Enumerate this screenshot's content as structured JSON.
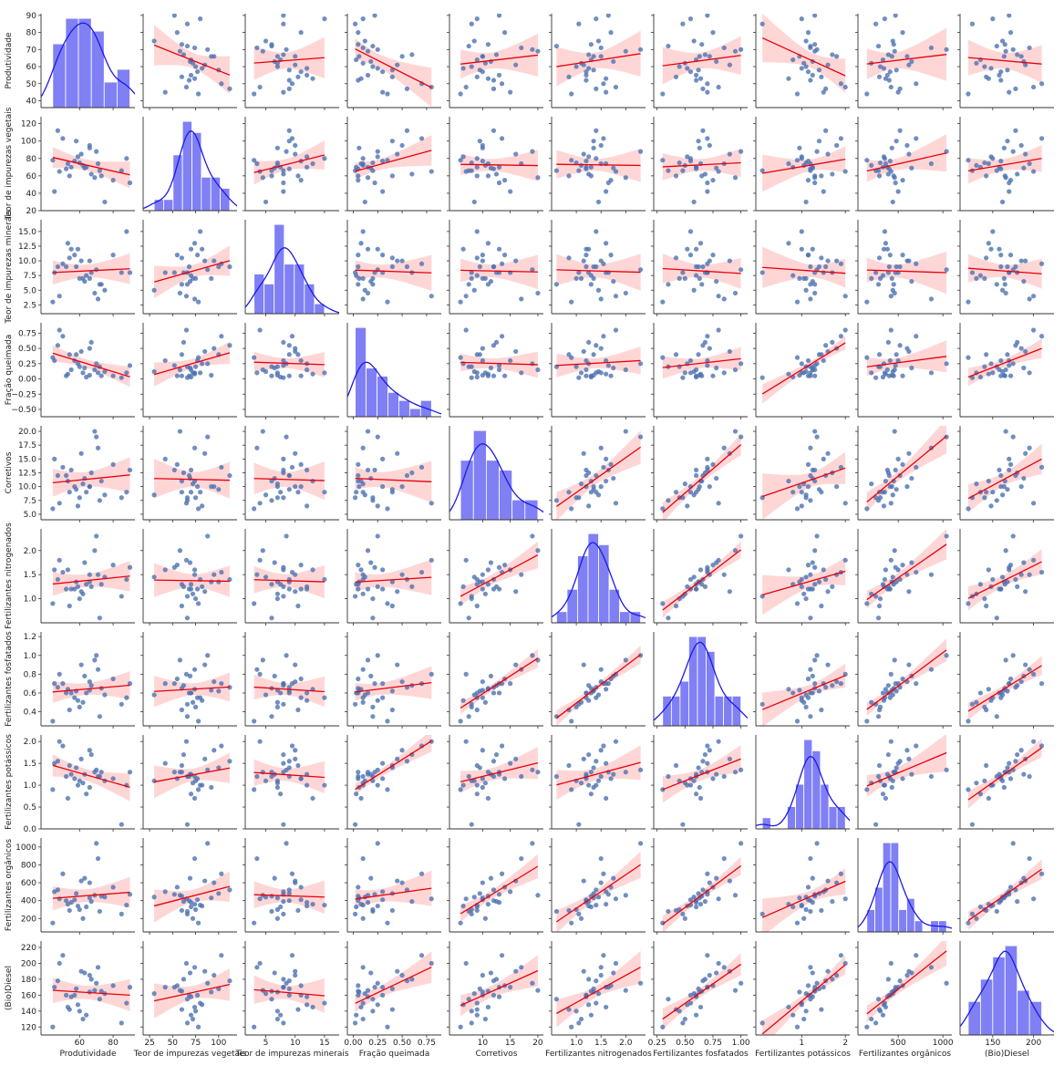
{
  "chart_data": {
    "type": "pairplot",
    "point_color": "#4c72b0",
    "line_color": "#e8000b",
    "band_color": "#ff8a8a",
    "hist_color": "#5555f0",
    "kde_color": "#1a1ae6",
    "variables": [
      {
        "name": "Produtividade",
        "xlim": [
          37,
          93
        ],
        "ylim": [
          36,
          91
        ],
        "xticks": [
          60,
          80
        ],
        "yticks": [
          40,
          50,
          60,
          70,
          80,
          90
        ],
        "bins": 6,
        "values": [
          52,
          88,
          45,
          60,
          73,
          66,
          55,
          48,
          70,
          62,
          58,
          80,
          44,
          67,
          75,
          53,
          61,
          72,
          50,
          64,
          69,
          57,
          85,
          47,
          63,
          59,
          71,
          54,
          66,
          90
        ]
      },
      {
        "name": "Teor de impurezas vegetais",
        "xlim": [
          18,
          120
        ],
        "ylim": [
          20,
          128
        ],
        "xticks": [
          25,
          50,
          75,
          100
        ],
        "yticks": [
          20,
          40,
          60,
          80,
          100,
          120
        ],
        "bins": 8,
        "values": [
          68,
          80,
          42,
          75,
          60,
          95,
          70,
          65,
          88,
          72,
          100,
          55,
          78,
          62,
          30,
          74,
          85,
          66,
          103,
          70,
          58,
          77,
          66,
          112,
          69,
          82,
          74,
          60,
          92,
          52
        ]
      },
      {
        "name": "Teor de impurezas minerais",
        "xlim": [
          1.5,
          17.5
        ],
        "ylim": [
          1,
          17
        ],
        "xticks": [
          5,
          10,
          15
        ],
        "yticks": [
          2.5,
          {
            "value": 5,
            "label": "5.0"
          },
          7.5,
          {
            "value": 10,
            "label": "10.0"
          },
          12.5,
          {
            "value": 15,
            "label": "15.0"
          }
        ],
        "bins": 7,
        "values": [
          9,
          15,
          8,
          7,
          6,
          10,
          12,
          4,
          8.5,
          7,
          9,
          11,
          3,
          8,
          5,
          13,
          10,
          6,
          9.5,
          7.5,
          4.5,
          11,
          8,
          9,
          6.5,
          12,
          3.5,
          10.5,
          7,
          8
        ]
      },
      {
        "name": "Fração queimada",
        "xlim": [
          -0.06,
          0.9
        ],
        "ylim": [
          -0.62,
          0.92
        ],
        "xticks": [
          {
            "value": 0,
            "label": "0.00"
          },
          0.25,
          {
            "value": 0.5,
            "label": "0.50"
          },
          0.75
        ],
        "yticks": [
          {
            "value": -0.5,
            "label": "−0.50"
          },
          {
            "value": -0.25,
            "label": "−0.25"
          },
          {
            "value": 0,
            "label": "0.00"
          },
          0.25,
          {
            "value": 0.5,
            "label": "0.50"
          },
          0.75
        ],
        "bins": 7,
        "values": [
          0.05,
          0.1,
          0.3,
          0.2,
          0.05,
          0.5,
          0.15,
          0.8,
          0.25,
          0.1,
          0.4,
          0.05,
          0.35,
          0.6,
          0.12,
          0.08,
          0.45,
          0.2,
          0.7,
          0.03,
          0.15,
          0.3,
          0.02,
          0.55,
          0.18,
          0.25,
          0.1,
          0.4,
          0.06,
          0.22
        ]
      },
      {
        "name": "Corretivos",
        "xlim": [
          4,
          21
        ],
        "ylim": [
          4,
          21
        ],
        "xticks": [
          10,
          15,
          20
        ],
        "yticks": [
          {
            "value": 5,
            "label": "5.0"
          },
          7.5,
          {
            "value": 10,
            "label": "10.0"
          },
          12.5,
          {
            "value": 15,
            "label": "15.0"
          },
          17.5,
          {
            "value": 20,
            "label": "20.0"
          }
        ],
        "bins": 6,
        "values": [
          12,
          9,
          15,
          8,
          11,
          10,
          13,
          7,
          19,
          10.5,
          9.5,
          14,
          6,
          12.5,
          8.5,
          11,
          16,
          7.5,
          13.5,
          9,
          20,
          10,
          8,
          12,
          11.5,
          6.5,
          17,
          9,
          10,
          13
        ]
      },
      {
        "name": "Fertilizantes nitrogenados",
        "xlim": [
          0.5,
          2.4
        ],
        "ylim": [
          0.5,
          2.45
        ],
        "xticks": [
          {
            "value": 1,
            "label": "1.0"
          },
          1.5,
          {
            "value": 2,
            "label": "2.0"
          }
        ],
        "yticks": [
          {
            "value": 1,
            "label": "1.0"
          },
          1.5,
          {
            "value": 2,
            "label": "2.0"
          }
        ],
        "bins": 8,
        "values": [
          1.2,
          1.4,
          1.6,
          1.0,
          1.3,
          1.5,
          1.2,
          1.8,
          2.3,
          1.1,
          1.35,
          1.7,
          0.9,
          1.25,
          1.45,
          1.6,
          1.15,
          0.6,
          1.55,
          1.3,
          2.0,
          1.2,
          1.05,
          1.4,
          1.75,
          1.25,
          1.5,
          0.85,
          1.35,
          1.65
        ]
      },
      {
        "name": "Fertilizantes fosfatados",
        "xlim": [
          0.22,
          1.06
        ],
        "ylim": [
          0.25,
          1.25
        ],
        "xticks": [
          0.25,
          {
            "value": 0.5,
            "label": "0.50"
          },
          0.75,
          {
            "value": 1,
            "label": "1.00"
          }
        ],
        "yticks": [
          0.4,
          0.6,
          0.8,
          {
            "value": 1,
            "label": "1.0"
          },
          1.2
        ],
        "bins": 9,
        "values": [
          0.6,
          0.55,
          0.7,
          0.45,
          0.65,
          0.72,
          0.6,
          0.8,
          1.0,
          0.5,
          0.62,
          0.75,
          0.3,
          0.68,
          0.58,
          0.64,
          0.9,
          0.35,
          0.7,
          0.6,
          0.95,
          0.55,
          0.48,
          0.66,
          0.78,
          0.52,
          0.85,
          0.42,
          0.63,
          0.7
        ]
      },
      {
        "name": "Fertilizantes potássicos",
        "xlim": [
          -0.05,
          2.1
        ],
        "ylim": [
          0,
          2.15
        ],
        "xticks": [
          1,
          2
        ],
        "yticks": [
          {
            "value": 0,
            "label": "0.0"
          },
          0.5,
          {
            "value": 1,
            "label": "1.0"
          },
          1.5,
          {
            "value": 2,
            "label": "2.0"
          }
        ],
        "bins": 10,
        "values": [
          1.2,
          1.0,
          1.5,
          1.1,
          1.3,
          1.8,
          1.25,
          2.0,
          1.35,
          1.05,
          1.4,
          1.15,
          0.9,
          1.7,
          1.1,
          0.7,
          1.6,
          1.2,
          1.9,
          0.8,
          1.3,
          1.15,
          0.1,
          1.55,
          1.25,
          1.0,
          1.2,
          1.45,
          0.95,
          1.3
        ]
      },
      {
        "name": "Fertilizantes orgânicos",
        "xlim": [
          50,
          1100
        ],
        "ylim": [
          50,
          1100
        ],
        "xticks": [
          500,
          1000
        ],
        "yticks": [
          200,
          400,
          600,
          800,
          1000
        ],
        "bins": 10,
        "values": [
          400,
          350,
          500,
          300,
          450,
          600,
          380,
          420,
          1040,
          200,
          480,
          550,
          150,
          390,
          440,
          360,
          620,
          280,
          700,
          330,
          460,
          410,
          250,
          520,
          650,
          340,
          870,
          290,
          430,
          470
        ]
      },
      {
        "name": "(Bio)Diesel",
        "xlim": [
          110,
          225
        ],
        "ylim": [
          110,
          228
        ],
        "xticks": [
          150,
          200
        ],
        "yticks": [
          120,
          140,
          160,
          180,
          200,
          220
        ],
        "bins": 6,
        "values": [
          160,
          150,
          170,
          140,
          165,
          185,
          158,
          200,
          175,
          130,
          168,
          172,
          120,
          180,
          162,
          145,
          190,
          155,
          210,
          135,
          166,
          160,
          125,
          178,
          188,
          148,
          195,
          142,
          164,
          170
        ]
      }
    ]
  }
}
